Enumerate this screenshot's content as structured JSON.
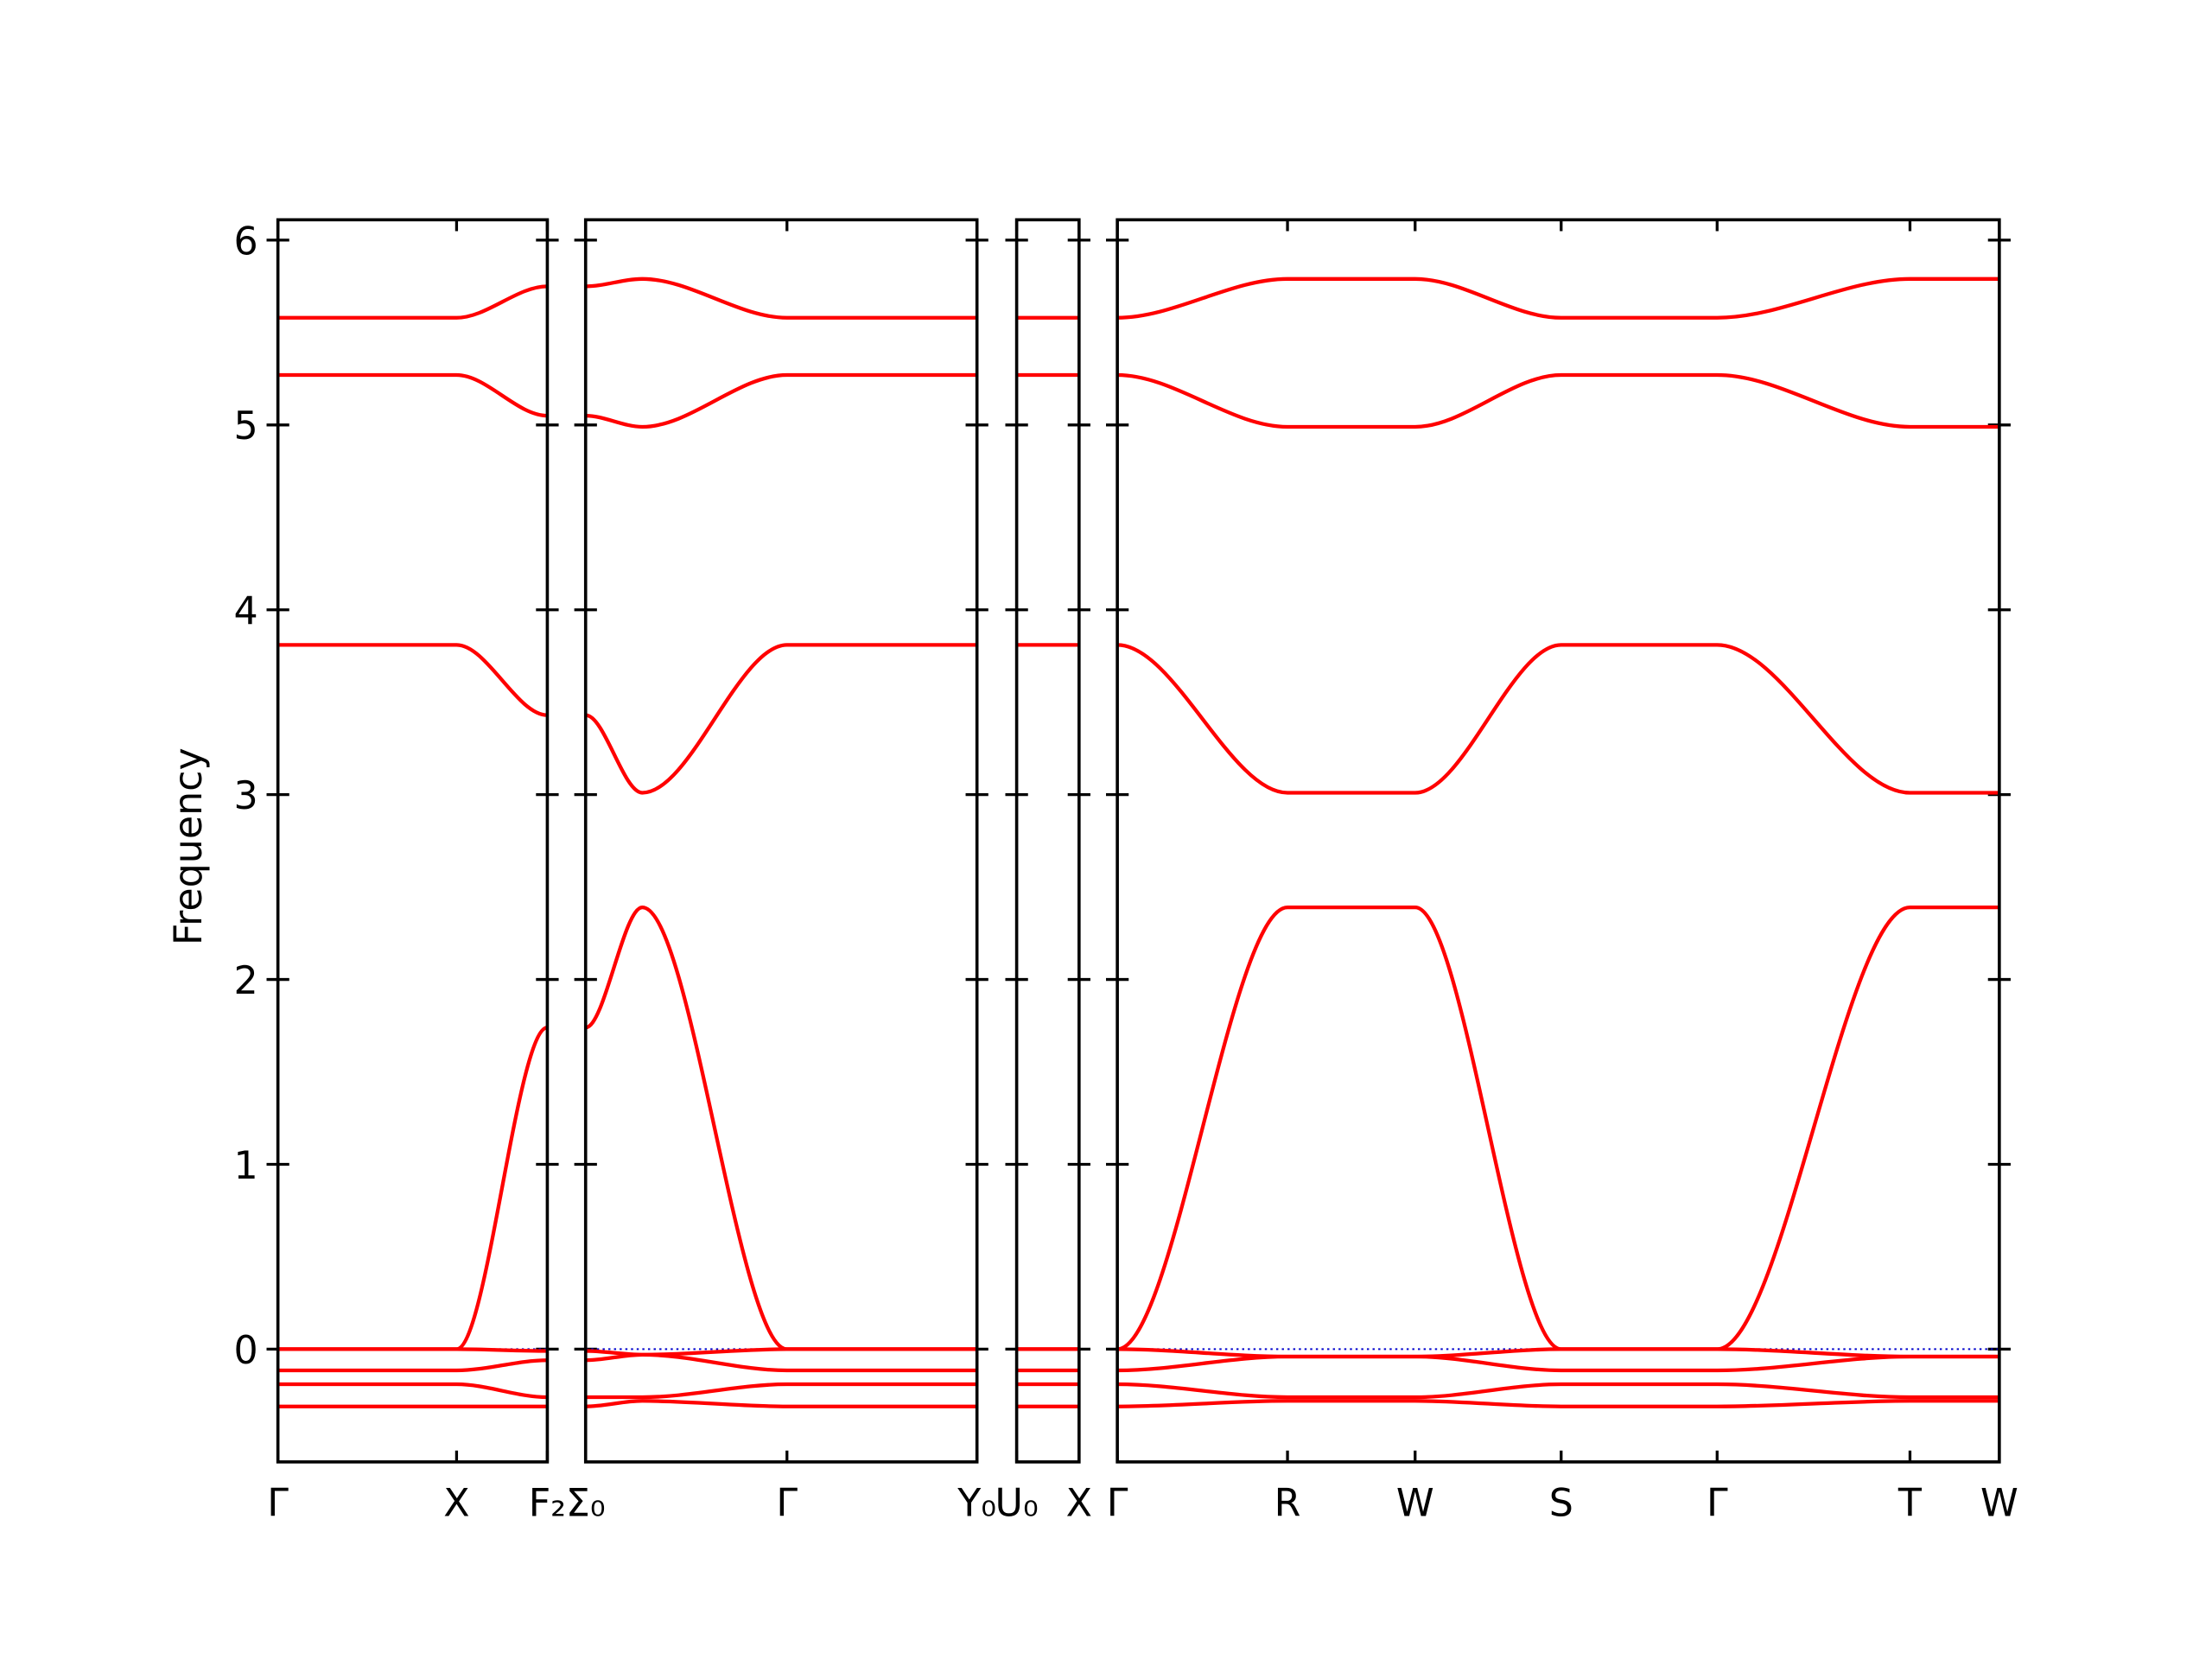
{
  "chart_data": [
    {
      "type": "line",
      "ylabel": "Frequency",
      "ylim": [
        -0.61,
        6.11
      ],
      "yticks": [
        0,
        1,
        2,
        3,
        4,
        5,
        6
      ],
      "x": [
        0,
        1.26,
        1.9
      ],
      "xlim": [
        0,
        1.9
      ],
      "xticks": [
        {
          "value": 0,
          "label": "Γ"
        },
        {
          "value": 1.26,
          "label": "X"
        },
        {
          "value": 1.9,
          "label": "F₂"
        }
      ],
      "zero_line_color": "#0000cc",
      "series": [
        {
          "color": "#ff0000",
          "values": [
            5.58,
            5.58,
            5.75
          ]
        },
        {
          "color": "#ff0000",
          "values": [
            5.27,
            5.27,
            5.05
          ]
        },
        {
          "color": "#ff0000",
          "values": [
            3.81,
            3.81,
            3.43
          ]
        },
        {
          "color": "#ff0000",
          "values": [
            0,
            0,
            1.74
          ]
        },
        {
          "color": "#ff0000",
          "values": [
            0,
            0,
            -0.01
          ]
        },
        {
          "color": "#ff0000",
          "values": [
            -0.115,
            -0.115,
            -0.06
          ]
        },
        {
          "color": "#ff0000",
          "values": [
            -0.19,
            -0.19,
            -0.26
          ]
        },
        {
          "color": "#ff0000",
          "values": [
            -0.31,
            -0.31,
            -0.31
          ]
        }
      ]
    },
    {
      "type": "line",
      "ylim": [
        -0.61,
        6.11
      ],
      "x": [
        0,
        0.4,
        1.42,
        2.76
      ],
      "xlim": [
        0,
        2.76
      ],
      "xticks": [
        {
          "value": 0,
          "label": "Σ₀"
        },
        {
          "value": 1.42,
          "label": "Γ"
        },
        {
          "value": 2.76,
          "label": "Y₀"
        }
      ],
      "zero_line_color": "#0000cc",
      "series": [
        {
          "color": "#ff0000",
          "values": [
            5.75,
            5.79,
            5.58,
            5.58
          ]
        },
        {
          "color": "#ff0000",
          "values": [
            5.05,
            4.99,
            5.27,
            5.27
          ]
        },
        {
          "color": "#ff0000",
          "values": [
            3.43,
            3.01,
            3.81,
            3.81
          ]
        },
        {
          "color": "#ff0000",
          "values": [
            1.74,
            2.39,
            0,
            0
          ]
        },
        {
          "color": "#ff0000",
          "values": [
            -0.01,
            -0.03,
            0,
            0
          ]
        },
        {
          "color": "#ff0000",
          "values": [
            -0.06,
            -0.03,
            -0.115,
            -0.115
          ]
        },
        {
          "color": "#ff0000",
          "values": [
            -0.26,
            -0.26,
            -0.19,
            -0.19
          ]
        },
        {
          "color": "#ff0000",
          "values": [
            -0.31,
            -0.28,
            -0.31,
            -0.31
          ]
        }
      ]
    },
    {
      "type": "line",
      "ylim": [
        -0.61,
        6.11
      ],
      "x": [
        0,
        0.44
      ],
      "xlim": [
        0,
        0.44
      ],
      "xticks": [
        {
          "value": 0,
          "label": "U₀"
        },
        {
          "value": 0.44,
          "label": "X"
        }
      ],
      "zero_line_color": "#0000cc",
      "series": [
        {
          "color": "#ff0000",
          "values": [
            5.58,
            5.58
          ]
        },
        {
          "color": "#ff0000",
          "values": [
            5.27,
            5.27
          ]
        },
        {
          "color": "#ff0000",
          "values": [
            3.81,
            3.81
          ]
        },
        {
          "color": "#ff0000",
          "values": [
            0,
            0
          ]
        },
        {
          "color": "#ff0000",
          "values": [
            0,
            0
          ]
        },
        {
          "color": "#ff0000",
          "values": [
            -0.115,
            -0.115
          ]
        },
        {
          "color": "#ff0000",
          "values": [
            -0.19,
            -0.19
          ]
        },
        {
          "color": "#ff0000",
          "values": [
            -0.31,
            -0.31
          ]
        }
      ]
    },
    {
      "type": "line",
      "ylim": [
        -0.61,
        6.11
      ],
      "x": [
        0,
        1.2,
        2.1,
        3.13,
        4.23,
        5.59,
        6.22
      ],
      "xlim": [
        0,
        6.22
      ],
      "xticks": [
        {
          "value": 0,
          "label": "Γ"
        },
        {
          "value": 1.2,
          "label": "R"
        },
        {
          "value": 2.1,
          "label": "W"
        },
        {
          "value": 3.13,
          "label": "S"
        },
        {
          "value": 4.23,
          "label": "Γ"
        },
        {
          "value": 5.59,
          "label": "T"
        },
        {
          "value": 6.22,
          "label": "W"
        }
      ],
      "zero_line_color": "#0000cc",
      "series": [
        {
          "color": "#ff0000",
          "values": [
            5.58,
            5.79,
            5.79,
            5.58,
            5.58,
            5.79,
            5.79
          ]
        },
        {
          "color": "#ff0000",
          "values": [
            5.27,
            4.99,
            4.99,
            5.27,
            5.27,
            4.99,
            4.99
          ]
        },
        {
          "color": "#ff0000",
          "values": [
            3.81,
            3.01,
            3.01,
            3.81,
            3.81,
            3.01,
            3.01
          ]
        },
        {
          "color": "#ff0000",
          "values": [
            0,
            2.39,
            2.39,
            0,
            0,
            2.39,
            2.39
          ]
        },
        {
          "color": "#ff0000",
          "values": [
            0,
            -0.04,
            -0.04,
            0,
            0,
            -0.04,
            -0.04
          ]
        },
        {
          "color": "#ff0000",
          "values": [
            -0.115,
            -0.04,
            -0.04,
            -0.115,
            -0.115,
            -0.04,
            -0.04
          ]
        },
        {
          "color": "#ff0000",
          "values": [
            -0.19,
            -0.26,
            -0.26,
            -0.19,
            -0.19,
            -0.26,
            -0.26
          ]
        },
        {
          "color": "#ff0000",
          "values": [
            -0.31,
            -0.28,
            -0.28,
            -0.31,
            -0.31,
            -0.28,
            -0.28
          ]
        }
      ]
    }
  ]
}
